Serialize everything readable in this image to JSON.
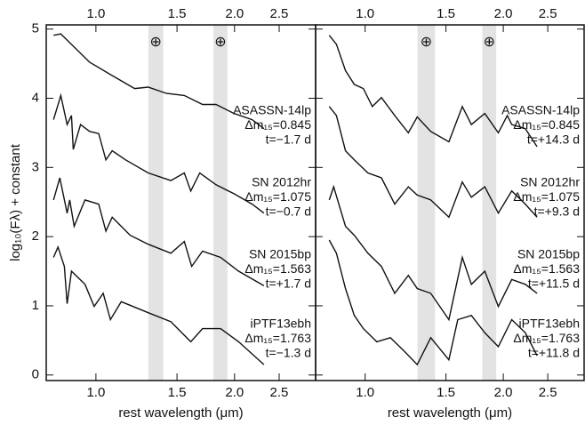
{
  "chart_data": [
    {
      "type": "line",
      "x_log": true,
      "xlim": [
        0.78,
        3.0
      ],
      "ylim": [
        -0.08,
        5.06
      ],
      "xticks": [
        {
          "value": 1,
          "label": "1.0"
        },
        1.5,
        {
          "value": 2,
          "label": "2.0"
        },
        2.5
      ],
      "yticks": [
        0,
        1,
        2,
        3,
        4,
        5
      ],
      "xlabel": "rest wavelength (μm)",
      "ylabel": "log₁₀(Fλ) + constant",
      "bands": [
        [
          1.3,
          1.4
        ],
        [
          1.8,
          1.93
        ]
      ],
      "band_label": "⊕",
      "color": "#111111",
      "band_color": "#e3e3e3",
      "series": [
        {
          "labels": [
            "ASASSN-14lp",
            "Δm₁₅=0.845",
            "t=−1.7 d"
          ],
          "x": [
            0.809,
            0.839,
            0.969,
            1.109,
            1.214,
            1.299,
            1.422,
            1.556,
            1.704,
            1.823,
            1.995,
            2.184,
            2.317
          ],
          "values": [
            4.91,
            4.93,
            4.52,
            4.29,
            4.14,
            4.16,
            4.07,
            4.04,
            3.91,
            3.91,
            3.78,
            3.69,
            3.56
          ]
        },
        {
          "labels": [
            "SN 2012hr",
            "Δm₁₅=1.075",
            "t=−0.7 d"
          ],
          "x": [
            0.809,
            0.839,
            0.866,
            0.885,
            0.893,
            0.926,
            0.969,
            1.014,
            1.051,
            1.085,
            1.16,
            1.299,
            1.455,
            1.556,
            1.607,
            1.681,
            1.823,
            1.995,
            2.184,
            2.317
          ],
          "values": [
            3.69,
            4.04,
            3.62,
            3.75,
            3.26,
            3.62,
            3.52,
            3.49,
            3.11,
            3.24,
            3.11,
            2.92,
            2.81,
            2.92,
            2.66,
            2.92,
            2.75,
            2.62,
            2.47,
            2.34
          ]
        },
        {
          "labels": [
            "SN 2015bp",
            "Δm₁₅=1.563",
            "t=+1.7 d"
          ],
          "x": [
            0.809,
            0.835,
            0.866,
            0.877,
            0.897,
            0.947,
            1.014,
            1.051,
            1.085,
            1.187,
            1.299,
            1.455,
            1.556,
            1.614,
            1.704,
            1.865,
            2.041,
            2.317
          ],
          "values": [
            2.53,
            2.85,
            2.34,
            2.53,
            2.15,
            2.53,
            2.47,
            2.08,
            2.28,
            2.02,
            1.89,
            1.76,
            1.93,
            1.57,
            1.79,
            1.7,
            1.5,
            1.29
          ]
        },
        {
          "labels": [
            "iPTF13ebh",
            "Δm₁₅=1.763",
            "t=−1.3 d"
          ],
          "x": [
            0.809,
            0.827,
            0.854,
            0.866,
            0.885,
            0.947,
            0.991,
            1.037,
            1.075,
            1.135,
            1.299,
            1.455,
            1.607,
            1.704,
            1.865,
            2.041,
            2.317
          ],
          "values": [
            1.7,
            1.85,
            1.57,
            1.03,
            1.5,
            1.31,
            0.99,
            1.18,
            0.8,
            1.06,
            0.9,
            0.77,
            0.48,
            0.67,
            0.67,
            0.48,
            0.15
          ]
        }
      ]
    },
    {
      "type": "line",
      "x_log": true,
      "xlim": [
        0.78,
        3.0
      ],
      "ylim": [
        -0.08,
        5.06
      ],
      "xticks": [
        {
          "value": 1,
          "label": "1.0"
        },
        1.5,
        {
          "value": 2,
          "label": "2.0"
        },
        2.5
      ],
      "yticks": [
        0,
        1,
        2,
        3,
        4,
        5
      ],
      "xlabel": "rest wavelength (μm)",
      "bands": [
        [
          1.3,
          1.42
        ],
        [
          1.8,
          1.93
        ]
      ],
      "band_label": "⊕",
      "color": "#111111",
      "band_color": "#e3e3e3",
      "series": [
        {
          "labels": [
            "ASASSN-14lp",
            "Δm₁₅=0.845",
            "t=+14.3 d"
          ],
          "x": [
            0.835,
            0.866,
            0.906,
            0.947,
            0.991,
            1.037,
            1.085,
            1.16,
            1.242,
            1.299,
            1.39,
            1.522,
            1.628,
            1.704,
            1.823,
            1.951,
            2.041,
            2.087,
            2.234,
            2.369
          ],
          "values": [
            4.91,
            4.78,
            4.4,
            4.2,
            4.14,
            3.88,
            4.01,
            3.75,
            3.5,
            3.73,
            3.52,
            3.37,
            3.88,
            3.62,
            3.78,
            3.5,
            3.75,
            3.62,
            3.56,
            3.3
          ]
        },
        {
          "labels": [
            "SN 2012hr",
            "Δm₁₅=1.075",
            "t=+9.3 d"
          ],
          "x": [
            0.835,
            0.866,
            0.906,
            0.947,
            1.014,
            1.085,
            1.16,
            1.242,
            1.299,
            1.39,
            1.522,
            1.628,
            1.704,
            1.823,
            1.951,
            2.087,
            2.234,
            2.369
          ],
          "values": [
            3.88,
            3.75,
            3.24,
            3.11,
            2.92,
            2.85,
            2.47,
            2.72,
            2.6,
            2.53,
            2.28,
            2.79,
            2.57,
            2.72,
            2.34,
            2.66,
            2.47,
            2.28
          ]
        },
        {
          "labels": [
            "SN 2015bp",
            "Δm₁₅=1.563",
            "t=+11.5 d"
          ],
          "x": [
            0.835,
            0.854,
            0.906,
            0.947,
            1.014,
            1.085,
            1.16,
            1.242,
            1.299,
            1.39,
            1.522,
            1.628,
            1.704,
            1.823,
            1.951,
            2.087,
            2.234,
            2.369
          ],
          "values": [
            2.53,
            2.72,
            2.15,
            2.02,
            1.76,
            1.57,
            1.18,
            1.44,
            1.25,
            1.18,
            0.8,
            1.7,
            1.31,
            1.5,
            0.99,
            1.38,
            1.31,
            1.18
          ]
        },
        {
          "labels": [
            "iPTF13ebh",
            "Δm₁₅=1.763",
            "t=+11.8 d"
          ],
          "x": [
            0.835,
            0.866,
            0.906,
            0.947,
            0.991,
            1.06,
            1.135,
            1.214,
            1.299,
            1.39,
            1.522,
            1.592,
            1.704,
            1.823,
            1.951,
            2.087,
            2.234,
            2.369
          ],
          "values": [
            1.95,
            1.76,
            1.25,
            0.86,
            0.67,
            0.48,
            0.54,
            0.35,
            0.15,
            0.54,
            0.22,
            0.8,
            0.86,
            0.61,
            0.41,
            0.8,
            0.61,
            0.28
          ]
        }
      ]
    }
  ]
}
